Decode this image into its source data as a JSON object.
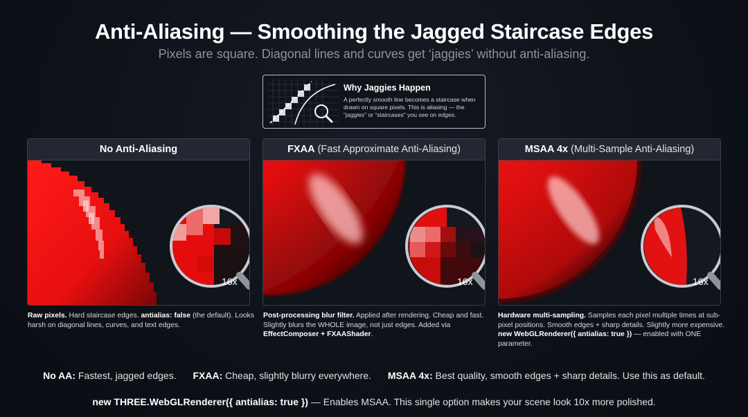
{
  "header": {
    "title": "Anti-Aliasing — Smoothing the Jagged Staircase Edges",
    "subtitle": "Pixels are square. Diagonal lines and curves get ‘jaggies’ without anti-aliasing."
  },
  "info_box": {
    "title": "Why Jaggies Happen",
    "text": "A perfectly smooth line becomes a staircase when drawn on square pixels. This is aliasing — the “jaggies” or “staircases” you see on edges."
  },
  "panels": [
    {
      "title_bold": "No Anti-Aliasing",
      "title_rest": "",
      "zoom": "16x",
      "desc_bold": "Raw pixels.",
      "desc_1": " Hard staircase edges. ",
      "desc_bold2": "antialias: false",
      "desc_2": " (the default). Looks harsh on diagonal lines, curves, and text edges."
    },
    {
      "title_bold": "FXAA",
      "title_rest": " (Fast Approximate Anti-Aliasing)",
      "zoom": "16x",
      "desc_bold": "Post-processing blur filter.",
      "desc_1": " Applied after rendering. Cheap and fast. Slightly blurs the WHOLE image, not just edges. Added via ",
      "desc_bold2": "EffectComposer + FXAAShader",
      "desc_2": "."
    },
    {
      "title_bold": "MSAA 4x",
      "title_rest": " (Multi-Sample Anti-Aliasing)",
      "zoom": "16x",
      "desc_bold": "Hardware multi-sampling.",
      "desc_1": " Samples each pixel multiple times at sub-pixel positions. Smooth edges + sharp details. Slightly more expensive. ",
      "desc_bold2": "new WebGLRenderer({ antialias: true })",
      "desc_2": " — enabled with ONE parameter."
    }
  ],
  "summary": [
    {
      "label": "No AA:",
      "text": " Fastest, jagged edges."
    },
    {
      "label": "FXAA:",
      "text": " Cheap, slightly blurry everywhere."
    },
    {
      "label": "MSAA 4x:",
      "text": " Best quality, smooth edges + sharp details. Use this as default."
    }
  ],
  "footer": {
    "code": "new THREE.WebGLRenderer({ antialias: true })",
    "text": " — Enables MSAA. This single option makes your scene look 10x more polished."
  },
  "colors": {
    "sphere_red": "#e3131b",
    "background": "#0d1118",
    "panel_header": "#232731"
  },
  "icons": [
    "magnifier-icon",
    "pixel-grid-icon"
  ]
}
